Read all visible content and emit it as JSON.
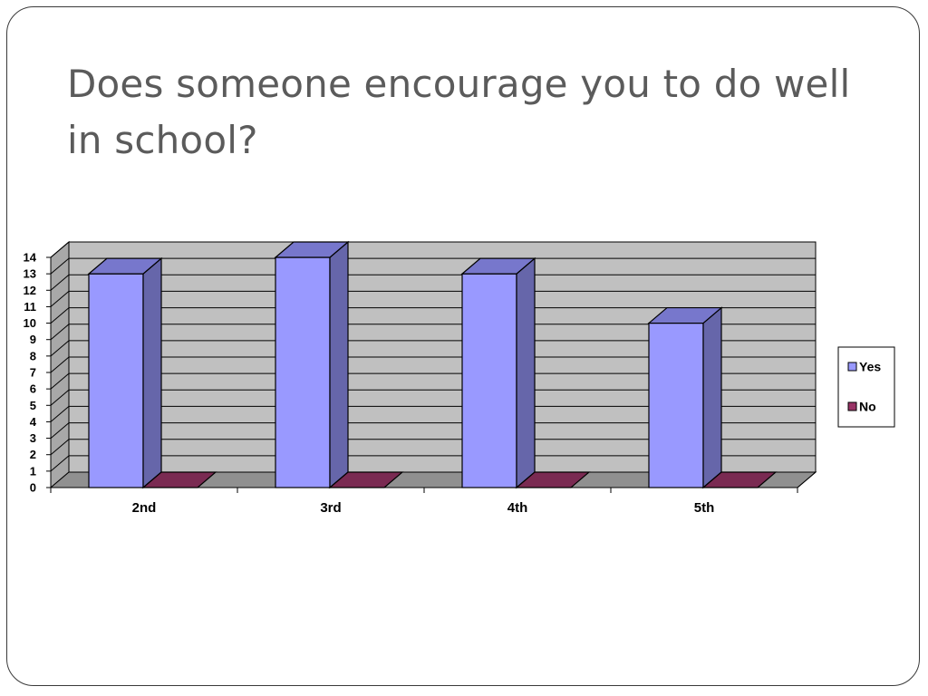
{
  "slide": {
    "title": "Does someone encourage you to do well in school?"
  },
  "chart_data": {
    "type": "bar",
    "title": "",
    "xlabel": "",
    "ylabel": "",
    "categories": [
      "2nd",
      "3rd",
      "4th",
      "5th"
    ],
    "series": [
      {
        "name": "Yes",
        "values": [
          13,
          14,
          13,
          10
        ],
        "color": "#9999ff",
        "side_color": "#6666aa",
        "top_color": "#7777cc"
      },
      {
        "name": "No",
        "values": [
          0,
          0,
          0,
          0
        ],
        "color": "#993366",
        "side_color": "#662244",
        "top_color": "#7a2a52"
      }
    ],
    "ylim": [
      0,
      14
    ],
    "y_ticks": [
      0,
      1,
      2,
      3,
      4,
      5,
      6,
      7,
      8,
      9,
      10,
      11,
      12,
      13,
      14
    ],
    "grid": true,
    "three_d": true,
    "legend_position": "right",
    "colors": {
      "wall": "#c0c0c0",
      "floor": "#909090",
      "grid": "#000000"
    }
  }
}
